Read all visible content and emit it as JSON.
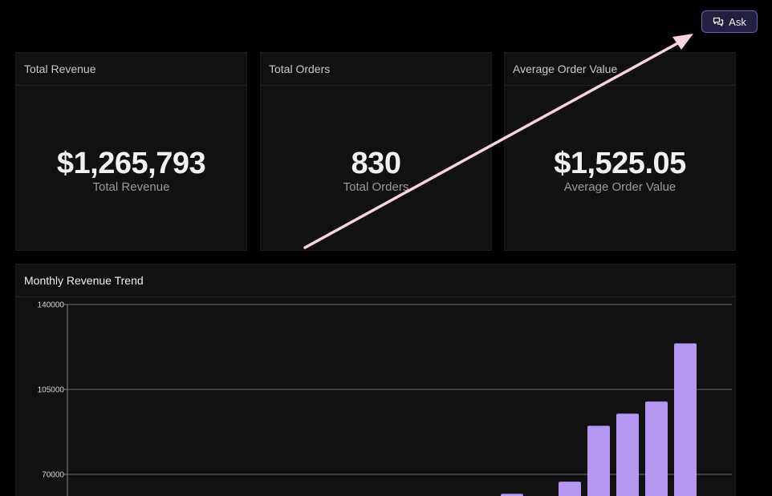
{
  "header": {
    "ask_button": {
      "label": "Ask",
      "icon": "chat-bubbles-icon"
    }
  },
  "kpis": [
    {
      "title": "Total Revenue",
      "value": "$1,265,793",
      "label": "Total Revenue"
    },
    {
      "title": "Total Orders",
      "value": "830",
      "label": "Total Orders"
    },
    {
      "title": "Average Order Value",
      "value": "$1,525.05",
      "label": "Average Order Value"
    }
  ],
  "chart_panel": {
    "title": "Monthly Revenue Trend"
  },
  "chart_data": {
    "type": "bar",
    "title": "Monthly Revenue Trend",
    "xlabel": "",
    "ylabel": "",
    "ylim": [
      0,
      140000
    ],
    "yticks": [
      70000,
      105000,
      140000
    ],
    "grid": true,
    "bar_color": "#b497f0",
    "values": [
      0,
      0,
      0,
      0,
      0,
      0,
      0,
      0,
      0,
      0,
      0,
      0,
      0,
      0,
      0,
      62000,
      0,
      67000,
      90000,
      95000,
      100000,
      124000
    ]
  },
  "annotation": {
    "type": "arrow",
    "color": "#f5d5de"
  },
  "colors": {
    "background": "#000000",
    "card": "#111111",
    "accent": "#b497f0",
    "ask_button_bg": "#221f40",
    "ask_button_border": "#6a64b8"
  }
}
